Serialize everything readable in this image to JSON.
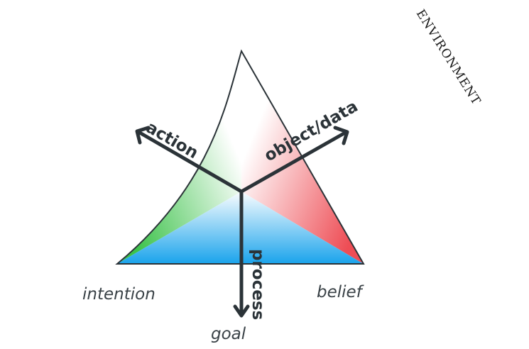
{
  "diagram": {
    "environment": "ENVIRONMENT",
    "axes": {
      "action": "action",
      "object": "object/data",
      "process": "process"
    },
    "corners": {
      "intention": "intention",
      "belief": "belief",
      "goal": "goal"
    },
    "colors": {
      "green": "#3cc24a",
      "red": "#ee4d55",
      "blue": "#1ea5ec",
      "ink": "#2b3338"
    }
  }
}
